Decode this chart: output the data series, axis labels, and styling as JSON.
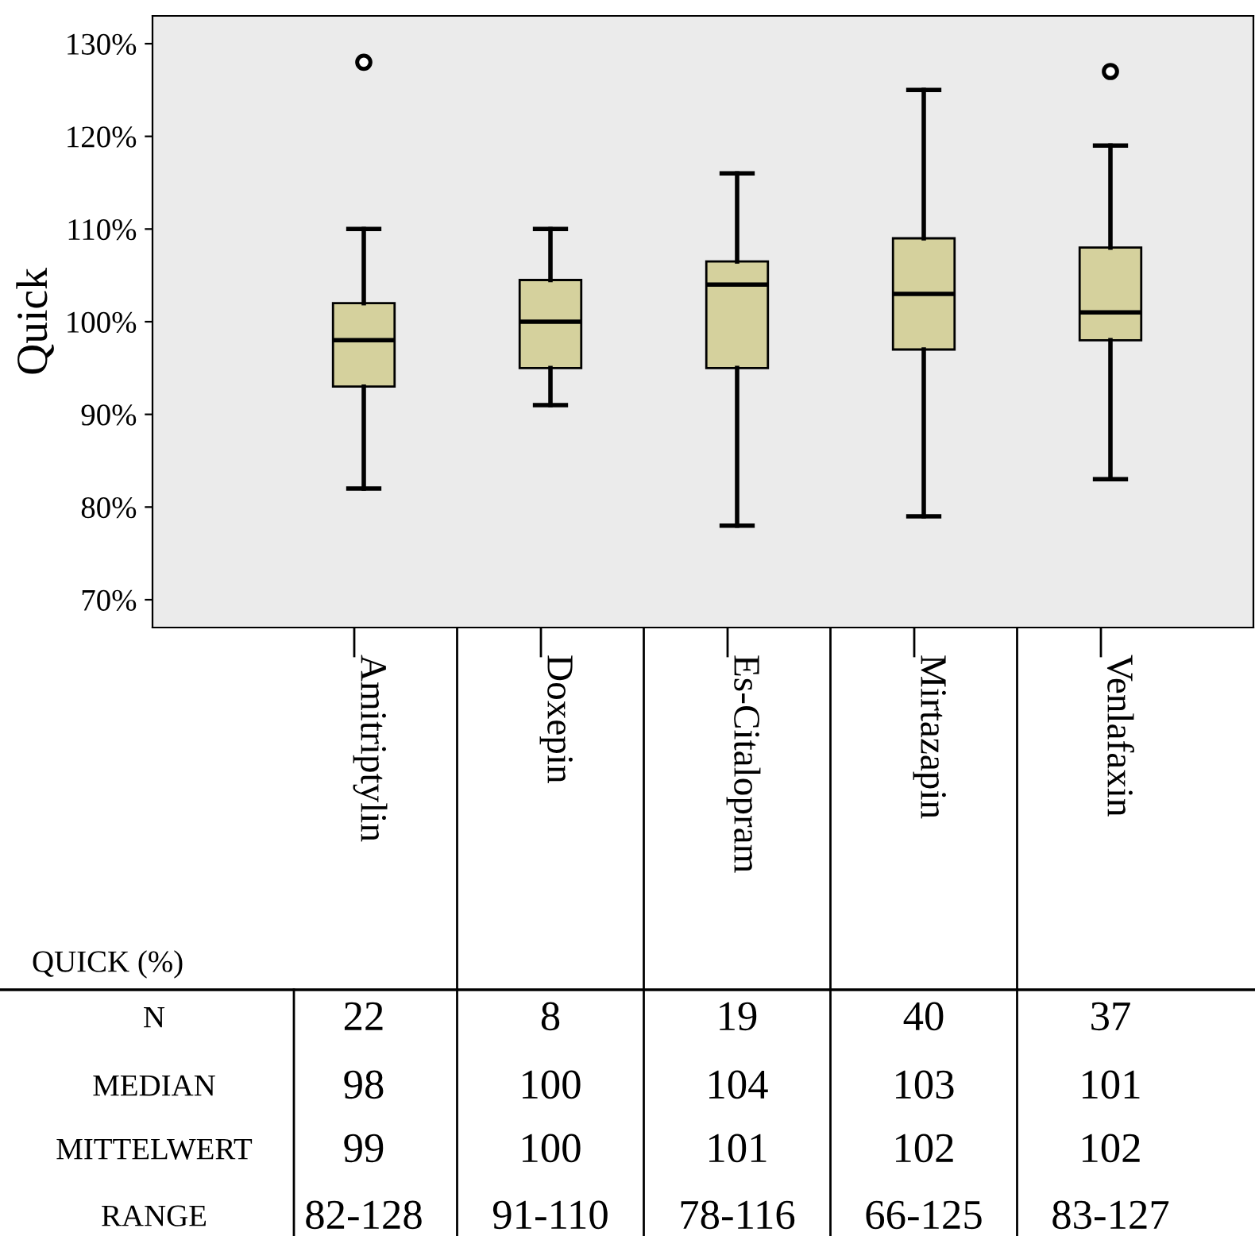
{
  "chart_data": {
    "type": "box",
    "ylabel": "Quick",
    "categories": [
      "Amitriptylin",
      "Doxepin",
      "Es-Citalopram",
      "Mirtazapin",
      "Venlafaxin"
    ],
    "boxes": [
      {
        "low": 82,
        "q1": 93,
        "median": 98,
        "q3": 102,
        "high": 110,
        "outliers": [
          128
        ]
      },
      {
        "low": 91,
        "q1": 95,
        "median": 100,
        "q3": 104.5,
        "high": 110
      },
      {
        "low": 78,
        "q1": 95,
        "median": 104,
        "q3": 106.5,
        "high": 116
      },
      {
        "low": 79,
        "q1": 97,
        "median": 103,
        "q3": 109,
        "high": 125
      },
      {
        "low": 83,
        "q1": 98,
        "median": 101,
        "q3": 108,
        "high": 119,
        "outliers": [
          127
        ]
      }
    ],
    "color": "#d5d19d",
    "ylim": [
      67,
      133
    ],
    "yticks": [
      {
        "value": 70,
        "label": "70%"
      },
      {
        "value": 80,
        "label": "80%"
      },
      {
        "value": 90,
        "label": "90%"
      },
      {
        "value": 100,
        "label": "100%"
      },
      {
        "value": 110,
        "label": "110%"
      },
      {
        "value": 120,
        "label": "120%"
      },
      {
        "value": 130,
        "label": "130%"
      }
    ],
    "grid": false,
    "tick_labels": "y",
    "annotations": [
      "QUICK (%)",
      "N",
      "22",
      "8",
      "19",
      "40",
      "37",
      "MEDIAN",
      "98",
      "100",
      "104",
      "103",
      "101",
      "MITTELWERT",
      "99",
      "100",
      "101",
      "102",
      "102",
      "RANGE",
      "82-128",
      "91-110",
      "78-116",
      "66-125",
      "83-127"
    ]
  }
}
